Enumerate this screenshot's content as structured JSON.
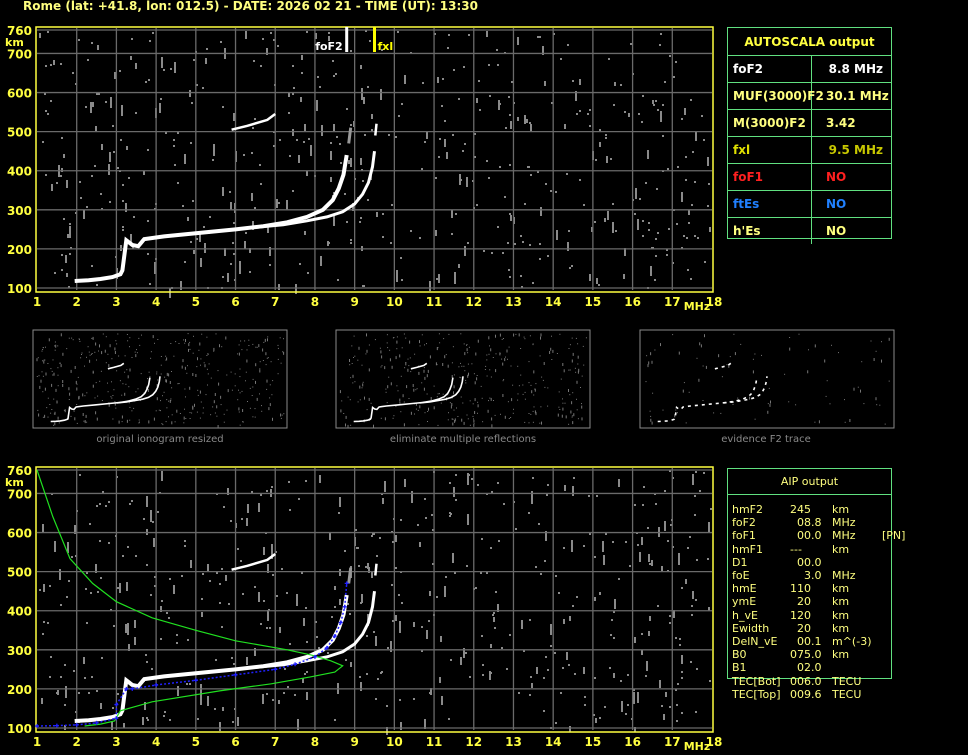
{
  "header": {
    "title": "Rome (lat: +41.8, lon: 012.5) - DATE: 2026 02 21 - TIME (UT): 13:30"
  },
  "autoscala": {
    "title": "AUTOSCALA output",
    "rows": [
      {
        "label": "foF2",
        "value": "8.8 MHz",
        "color": "#ffffff",
        "value_color": "#ffffff"
      },
      {
        "label": "MUF(3000)F2",
        "value": "30.1 MHz",
        "color": "#ffff80",
        "value_color": "#ffff80"
      },
      {
        "label": "M(3000)F2",
        "value": "3.42",
        "color": "#ffff80",
        "value_color": "#ffff80"
      },
      {
        "label": "fxl",
        "value": "9.5 MHz",
        "color": "#e0e000",
        "value_color": "#c8c800"
      },
      {
        "label": "foF1",
        "value": "NO",
        "color": "#ff2020",
        "value_color": "#ff2020"
      },
      {
        "label": "ftEs",
        "value": "NO",
        "color": "#2080ff",
        "value_color": "#2080ff"
      },
      {
        "label": "h'Es",
        "value": "NO",
        "color": "#ffff80",
        "value_color": "#ffff80"
      }
    ]
  },
  "aip": {
    "title": "AIP output",
    "rows": [
      {
        "name": "hmF2",
        "value": "245",
        "unit": "km",
        "extra": ""
      },
      {
        "name": "foF2",
        "value": "  08.8",
        "unit": "MHz",
        "extra": ""
      },
      {
        "name": "foF1",
        "value": "  00.0",
        "unit": "MHz",
        "extra": "[PN]"
      },
      {
        "name": "hmF1",
        "value": "---",
        "unit": "km",
        "extra": ""
      },
      {
        "name": "D1",
        "value": "  00.0",
        "unit": "",
        "extra": ""
      },
      {
        "name": "foE",
        "value": "    3.0",
        "unit": "MHz",
        "extra": ""
      },
      {
        "name": "hmE",
        "value": "110",
        "unit": "km",
        "extra": ""
      },
      {
        "name": "ymE",
        "value": "  20",
        "unit": "km",
        "extra": ""
      },
      {
        "name": "h_vE",
        "value": "120",
        "unit": "km",
        "extra": ""
      },
      {
        "name": "Ewidth",
        "value": "  20",
        "unit": "km",
        "extra": ""
      },
      {
        "name": "DelN_vE",
        "value": "  00.1",
        "unit": "m^(-3)",
        "extra": ""
      },
      {
        "name": "B0",
        "value": "075.0",
        "unit": "km",
        "extra": ""
      },
      {
        "name": "B1",
        "value": "  02.0",
        "unit": "",
        "extra": ""
      },
      {
        "name": "TEC[Bot]",
        "value": "006.0",
        "unit": "TECU",
        "extra": ""
      },
      {
        "name": "TEC[Top]",
        "value": "009.6",
        "unit": "TECU",
        "extra": ""
      }
    ]
  },
  "thumbnails": [
    {
      "caption": "original ionogram resized"
    },
    {
      "caption": "eliminate multiple reflections"
    },
    {
      "caption": "evidence F2 trace"
    }
  ],
  "chart_data": {
    "type": "scatter",
    "xlabel": "MHz",
    "ylabel": "km",
    "xlim": [
      1,
      18
    ],
    "ylim": [
      100,
      760
    ],
    "x_ticks": [
      "1",
      "2",
      "3",
      "4",
      "5",
      "6",
      "7",
      "8",
      "9",
      "10",
      "11",
      "12",
      "13",
      "14",
      "15",
      "16",
      "17",
      "18"
    ],
    "y_ticks": [
      "100",
      "200",
      "300",
      "400",
      "500",
      "600",
      "700",
      "760"
    ],
    "grid": true,
    "colors": {
      "axis": "#ffff40",
      "grid": "#6a6a6a",
      "trace": "#ffffff",
      "noise": "#8a8a8a",
      "fit": "#2020ff",
      "profile": "#20e020"
    },
    "markers": [
      {
        "label": "foF2",
        "x": 8.8,
        "color": "#ffffff"
      },
      {
        "label": "fxl",
        "x": 9.5,
        "color": "#ffff00"
      }
    ],
    "o_trace": [
      [
        1.95,
        118
      ],
      [
        2.3,
        120
      ],
      [
        2.6,
        123
      ],
      [
        2.9,
        128
      ],
      [
        3.1,
        135
      ],
      [
        3.15,
        145
      ],
      [
        3.25,
        222
      ],
      [
        3.4,
        210
      ],
      [
        3.55,
        207
      ],
      [
        3.7,
        225
      ],
      [
        4.2,
        232
      ],
      [
        5,
        240
      ],
      [
        6,
        250
      ],
      [
        6.7,
        258
      ],
      [
        7.3,
        268
      ],
      [
        7.8,
        282
      ],
      [
        8.2,
        300
      ],
      [
        8.45,
        325
      ],
      [
        8.6,
        355
      ],
      [
        8.72,
        390
      ],
      [
        8.8,
        440
      ]
    ],
    "o_trace_faint": [
      [
        8.85,
        470
      ],
      [
        8.9,
        510
      ]
    ],
    "x_trace": [
      [
        6.5,
        255
      ],
      [
        7.2,
        262
      ],
      [
        7.8,
        272
      ],
      [
        8.3,
        282
      ],
      [
        8.7,
        295
      ],
      [
        9.0,
        315
      ],
      [
        9.2,
        340
      ],
      [
        9.35,
        370
      ],
      [
        9.45,
        410
      ],
      [
        9.5,
        450
      ]
    ],
    "x_trace_top": [
      [
        9.52,
        490
      ],
      [
        9.55,
        520
      ]
    ],
    "multiple_trace": [
      [
        5.9,
        505
      ],
      [
        6.3,
        515
      ],
      [
        6.8,
        530
      ],
      [
        7.0,
        545
      ]
    ],
    "aip_fit": [
      [
        1,
        105
      ],
      [
        1.5,
        106
      ],
      [
        2,
        108
      ],
      [
        2.5,
        113
      ],
      [
        3,
        125
      ],
      [
        3.0,
        160
      ],
      [
        3.25,
        200
      ],
      [
        3.4,
        200
      ],
      [
        4,
        210
      ],
      [
        5,
        222
      ],
      [
        6,
        236
      ],
      [
        7,
        250
      ],
      [
        7.5,
        263
      ],
      [
        8,
        282
      ],
      [
        8.3,
        305
      ],
      [
        8.5,
        335
      ],
      [
        8.65,
        370
      ],
      [
        8.75,
        410
      ],
      [
        8.8,
        470
      ]
    ],
    "aip_profile": [
      [
        1,
        760
      ],
      [
        1.4,
        640
      ],
      [
        1.83,
        533
      ],
      [
        2.4,
        470
      ],
      [
        3,
        423
      ],
      [
        3.9,
        382
      ],
      [
        5,
        350
      ],
      [
        6,
        323
      ],
      [
        7.3,
        300
      ],
      [
        7.9,
        287
      ],
      [
        8.4,
        272
      ],
      [
        8.7,
        259
      ],
      [
        8.5,
        243
      ],
      [
        7.9,
        231
      ],
      [
        6.9,
        213
      ],
      [
        5.6,
        195
      ],
      [
        3.9,
        167
      ],
      [
        3.1,
        144
      ],
      [
        2.95,
        118
      ],
      [
        2.6,
        110
      ],
      [
        2.2,
        105
      ]
    ]
  }
}
